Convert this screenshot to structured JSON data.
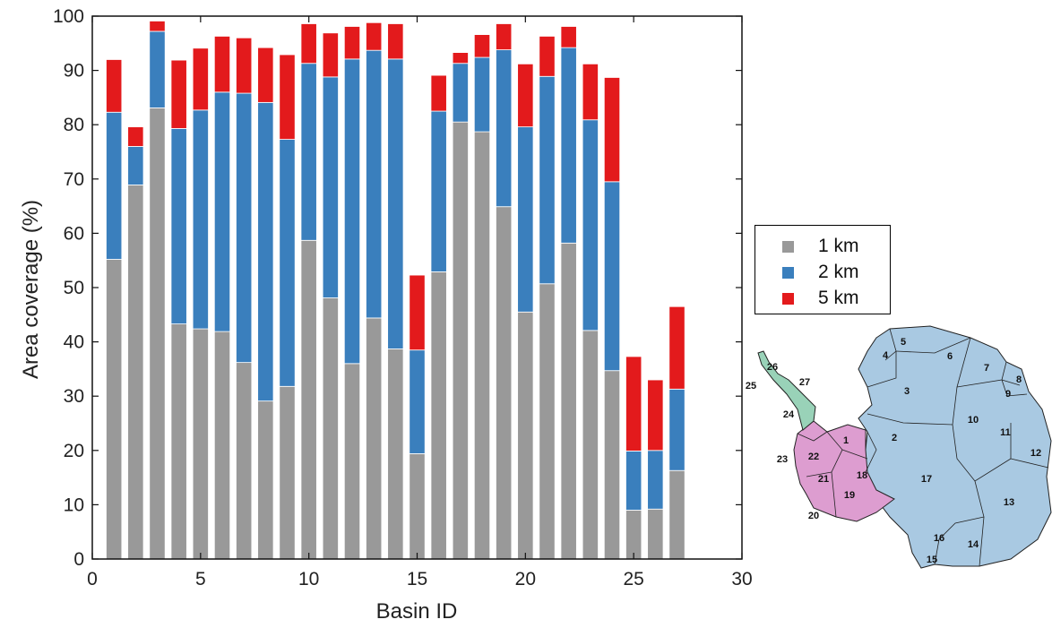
{
  "chart_data": {
    "type": "bar",
    "stacked": true,
    "xlabel": "Basin ID",
    "ylabel": "Area coverage (%)",
    "xlim": [
      0,
      30
    ],
    "ylim": [
      0,
      100
    ],
    "xticks": [
      0,
      5,
      10,
      15,
      20,
      25,
      30
    ],
    "yticks": [
      0,
      10,
      20,
      30,
      40,
      50,
      60,
      70,
      80,
      90,
      100
    ],
    "grid": false,
    "legend_position": "right",
    "x": [
      1,
      2,
      3,
      4,
      5,
      6,
      7,
      8,
      9,
      10,
      11,
      12,
      13,
      14,
      15,
      16,
      17,
      18,
      19,
      20,
      21,
      22,
      23,
      24,
      25,
      26,
      27
    ],
    "series": [
      {
        "name": "1 km",
        "color": "#999999",
        "values": [
          55.2,
          68.9,
          83.1,
          43.3,
          42.4,
          41.9,
          36.2,
          29.1,
          31.8,
          58.7,
          48.1,
          36.0,
          44.4,
          38.7,
          19.4,
          52.9,
          80.5,
          78.7,
          64.9,
          45.5,
          50.7,
          58.2,
          42.1,
          34.7,
          9.0,
          9.2,
          16.3
        ]
      },
      {
        "name": "2 km",
        "color": "#3a7fbd",
        "values": [
          27.1,
          7.1,
          14.1,
          36.0,
          40.3,
          44.1,
          49.6,
          55.0,
          45.5,
          32.6,
          40.7,
          56.1,
          49.3,
          53.4,
          19.1,
          29.6,
          10.8,
          13.7,
          28.9,
          34.1,
          38.2,
          36.0,
          38.8,
          34.8,
          10.9,
          10.8,
          15.0
        ]
      },
      {
        "name": "5 km",
        "color": "#e31a1c",
        "values": [
          9.7,
          3.6,
          1.9,
          12.6,
          11.4,
          10.3,
          10.2,
          10.1,
          15.6,
          7.3,
          8.1,
          6.0,
          5.1,
          6.5,
          13.8,
          6.6,
          2.0,
          4.2,
          4.8,
          11.6,
          7.4,
          3.9,
          10.3,
          19.2,
          17.4,
          13.0,
          15.2
        ]
      }
    ]
  },
  "map": {
    "regions": {
      "east": "#a9c9e2",
      "west": "#dd9dd0",
      "peninsula": "#99d2b8"
    },
    "labels": [
      "1",
      "2",
      "3",
      "4",
      "5",
      "6",
      "7",
      "8",
      "9",
      "10",
      "11",
      "12",
      "13",
      "14",
      "15",
      "16",
      "17",
      "18",
      "19",
      "20",
      "21",
      "22",
      "23",
      "24",
      "25",
      "26",
      "27"
    ]
  }
}
